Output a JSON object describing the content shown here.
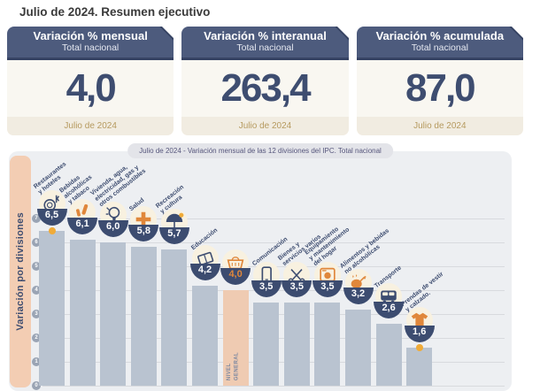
{
  "page_title": "Julio de 2024. Resumen ejecutivo",
  "cards": [
    {
      "title": "Variación % mensual",
      "subtitle": "Total nacional",
      "value": "4,0",
      "period": "Julio de 2024"
    },
    {
      "title": "Variación % interanual",
      "subtitle": "Total nacional",
      "value": "263,4",
      "period": "Julio de 2024"
    },
    {
      "title": "Variación % acumulada",
      "subtitle": "Total nacional",
      "value": "87,0",
      "period": "Julio de 2024"
    }
  ],
  "chart_data": {
    "type": "bar",
    "title": "Julio de 2024 - Variación mensual de las 12 divisiones del IPC. Total nacional",
    "ylabel": "Variación por divisiones",
    "ylim": [
      0,
      7
    ],
    "yticks": [
      0,
      1,
      2,
      3,
      4,
      5,
      6,
      7
    ],
    "grid": true,
    "categories": [
      "Restaurantes y hoteles",
      "Bebidas alcohólicas y tabaco",
      "Vivienda, agua, electricidad, gas y otros combustibles",
      "Salud",
      "Recreación y cultura",
      "Educación",
      "Nivel general",
      "Comunicación",
      "Bienes y servicios varios",
      "Equipamiento y mantenimiento del hogar",
      "Alimentos y bebidas no alcohólicas",
      "Transporte",
      "Prendas de vestir y calzado"
    ],
    "values": [
      6.5,
      6.1,
      6.0,
      5.8,
      5.7,
      4.2,
      4.0,
      3.5,
      3.5,
      3.5,
      3.2,
      2.6,
      1.6
    ],
    "items": [
      {
        "key": "restaurantes-y-hoteles",
        "label": "Restaurantes\ny hoteles",
        "value": 6.5,
        "value_label": "6,5",
        "icon": "restaurant-hotels-icon",
        "accent": "navy",
        "dot": true
      },
      {
        "key": "bebidas-alcoholicas-y-tabaco",
        "label": "Bebidas\nalcohólicas\ny tabaco",
        "value": 6.1,
        "value_label": "6,1",
        "icon": "alcoholic-beverages-tobacco-icon",
        "accent": "orange"
      },
      {
        "key": "vivienda-agua-electricidad-gas",
        "label": "Vivienda, agua,\nelectricidad, gas y\notros combustibles",
        "value": 6.0,
        "value_label": "6,0",
        "icon": "housing-utilities-icon",
        "accent": "navy"
      },
      {
        "key": "salud",
        "label": "Salud",
        "value": 5.8,
        "value_label": "5,8",
        "icon": "health-cross-icon",
        "accent": "orange"
      },
      {
        "key": "recreacion-y-cultura",
        "label": "Recreación\ny cultura",
        "value": 5.7,
        "value_label": "5,7",
        "icon": "recreation-umbrella-icon",
        "accent": "navy"
      },
      {
        "key": "educacion",
        "label": "Educación",
        "value": 4.2,
        "value_label": "4,2",
        "icon": "education-book-icon",
        "accent": "navy"
      },
      {
        "key": "nivel-general",
        "label": "",
        "inner_label": "NIVEL\nGENERAL",
        "value": 4.0,
        "value_label": "4,0",
        "icon": "general-level-basket-icon",
        "accent": "orange",
        "bar_style": "general",
        "value_color": "orange"
      },
      {
        "key": "comunicacion",
        "label": "Comunicación",
        "value": 3.5,
        "value_label": "3,5",
        "icon": "communication-phone-icon",
        "accent": "navy"
      },
      {
        "key": "bienes-y-servicios-varios",
        "label": "Bienes y\nservicios varios",
        "value": 3.5,
        "value_label": "3,5",
        "icon": "misc-goods-scissors-icon",
        "accent": "navy"
      },
      {
        "key": "equipamiento-y-mantenimiento-del-hogar",
        "label": "Equipamiento\ny mantenimiento\ndel hogar",
        "value": 3.5,
        "value_label": "3,5",
        "icon": "household-equipment-icon",
        "accent": "orange"
      },
      {
        "key": "alimentos-y-bebidas-no-alcoholicas",
        "label": "Alimentos y bebidas\nno alcohólicas",
        "value": 3.2,
        "value_label": "3,2",
        "icon": "food-non-alcoholic-icon",
        "accent": "orange"
      },
      {
        "key": "transporte",
        "label": "Transporte",
        "value": 2.6,
        "value_label": "2,6",
        "icon": "transport-bus-icon",
        "accent": "navy"
      },
      {
        "key": "prendas-de-vestir-y-calzado",
        "label": "Prendas de vestir\ny calzado.",
        "value": 1.6,
        "value_label": "1,6",
        "icon": "clothing-tshirt-icon",
        "accent": "orange",
        "dot": true
      }
    ]
  },
  "colors": {
    "navy": "#3e4d70",
    "navy_head": "#4d5b7d",
    "navy_dark": "#364363",
    "navy_bowl": "#3c4c70",
    "orange": "#e0873a",
    "yellow": "#f0ab38",
    "tan": "#b69a5f",
    "salmon": "#f3cdb3",
    "salmon_bar": "#efcbb2",
    "bar_gray": "#b9c3d0",
    "panel_bg": "#edeff2",
    "pill_bg": "#e3e4e9",
    "grid": "#d8dade",
    "tick": "#9aa4b4",
    "cream": "#f9f7f1",
    "cream_icon": "#f8f1e0",
    "footer_cream": "#f1ece1"
  }
}
